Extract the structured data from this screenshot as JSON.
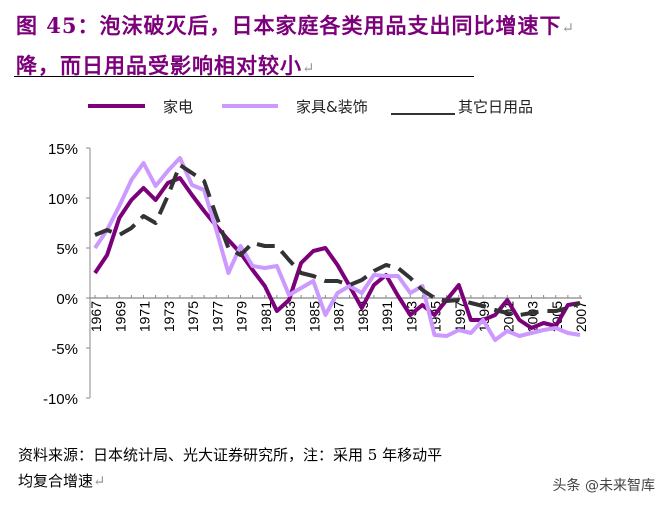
{
  "title_line1": "图 45：泡沫破灭后，日本家庭各类用品支出同比增速下",
  "title_line2": "降，而日用品受影响相对较小",
  "source_line1": "资料来源：日本统计局、光大证券研究所，注：采用 5 年移动平",
  "source_line2": "均复合增速",
  "watermark": "头条 @未来智库",
  "chart_data": {
    "type": "line",
    "title": "",
    "xlabel": "",
    "ylabel": "",
    "ylim": [
      -10,
      15
    ],
    "yticks": [
      "15%",
      "10%",
      "5%",
      "0%",
      "-5%",
      "-10%"
    ],
    "ytick_values": [
      15,
      10,
      5,
      0,
      -5,
      -10
    ],
    "x": [
      1967,
      1968,
      1969,
      1970,
      1971,
      1972,
      1973,
      1974,
      1975,
      1976,
      1977,
      1978,
      1979,
      1980,
      1981,
      1982,
      1983,
      1984,
      1985,
      1986,
      1987,
      1988,
      1989,
      1990,
      1991,
      1992,
      1993,
      1994,
      1995,
      1996,
      1997,
      1998,
      1999,
      2000,
      2001,
      2002,
      2003,
      2004,
      2005,
      2006,
      2007
    ],
    "xtick_labels": [
      "1967",
      "1969",
      "1971",
      "1973",
      "1975",
      "1977",
      "1979",
      "1981",
      "1983",
      "1985",
      "1987",
      "1989",
      "1991",
      "1993",
      "1995",
      "1997",
      "1999",
      "2001",
      "2003",
      "2005",
      "2007"
    ],
    "legend_position": "top",
    "grid": false,
    "series": [
      {
        "name": "家电",
        "color": "#7b007a",
        "style": "solid",
        "values": [
          2.5,
          4.3,
          8,
          9.8,
          11,
          9.8,
          11.5,
          12,
          10.3,
          8.7,
          7.2,
          5.8,
          4.5,
          2.8,
          1.2,
          -1.3,
          -0.2,
          3.5,
          4.7,
          5,
          3.3,
          1.2,
          -1,
          1.3,
          2.3,
          0.2,
          -1.7,
          -0.7,
          -1.7,
          -0.2,
          1.3,
          -2.2,
          -2.2,
          -1.7,
          -0.2,
          -2.2,
          -3,
          -2.5,
          -2.8,
          -0.7,
          -0.5
        ]
      },
      {
        "name": "家具&装饰",
        "color": "#cc99ff",
        "style": "solid",
        "values": [
          5,
          6.8,
          9.2,
          11.8,
          13.5,
          11.2,
          12.7,
          14,
          11.3,
          10.8,
          6.8,
          2.5,
          5.2,
          3.2,
          3,
          3.2,
          0.3,
          1,
          1.7,
          -1.7,
          0.5,
          1.2,
          0.5,
          2.3,
          2.2,
          2.2,
          0.5,
          1.2,
          -3.7,
          -3.8,
          -3.2,
          -3.5,
          -2.2,
          -4.2,
          -3.3,
          -3.8,
          -3.5,
          -3.2,
          -3,
          -3.5,
          -3.7
        ]
      },
      {
        "name": "其它日用品",
        "color": "#333333",
        "style": "dashed",
        "values": [
          6.3,
          6.8,
          6.3,
          7,
          8.2,
          7.5,
          10.2,
          13.3,
          12.5,
          11.7,
          8.2,
          5,
          4.3,
          5.5,
          5.2,
          5.2,
          3.8,
          2.5,
          2.2,
          1.7,
          1.7,
          1.3,
          1.8,
          2.7,
          3.3,
          3,
          2,
          0.8,
          0,
          -0.3,
          -0.2,
          -0.5,
          -0.8,
          -1.2,
          -1.5,
          -1.7,
          -1.5,
          -1.3,
          -1.3,
          -1,
          -0.5
        ]
      }
    ]
  }
}
